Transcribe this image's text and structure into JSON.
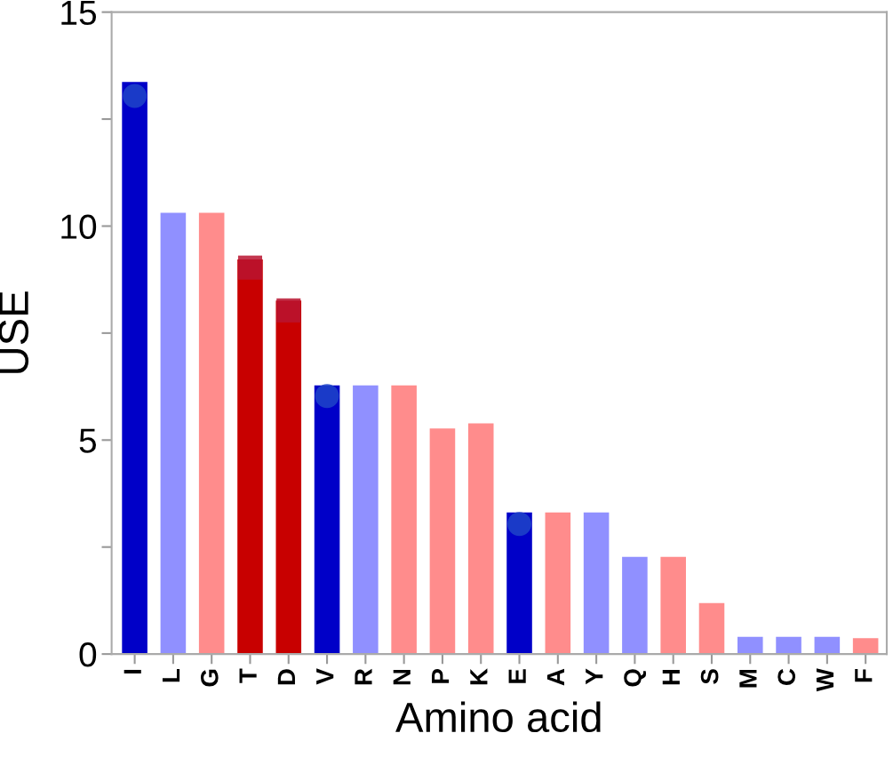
{
  "chart_data": {
    "type": "bar",
    "xlabel": "Amino acid",
    "ylabel": "USE",
    "categories": [
      "I",
      "L",
      "G",
      "T",
      "D",
      "V",
      "R",
      "N",
      "P",
      "K",
      "E",
      "A",
      "Y",
      "Q",
      "H",
      "S",
      "M",
      "C",
      "W",
      "F"
    ],
    "series": [
      {
        "values": [
          13.37,
          10.31,
          10.31,
          9.22,
          8.26,
          6.28,
          6.28,
          6.28,
          5.27,
          5.39,
          3.31,
          3.31,
          3.31,
          2.27,
          2.27,
          1.19,
          0.4,
          0.4,
          0.4,
          0.37
        ],
        "colors": [
          "#0000c8",
          "#9090ff",
          "#ff8c8c",
          "#c80000",
          "#c80000",
          "#0000c8",
          "#9090ff",
          "#ff8c8c",
          "#ff8c8c",
          "#ff8c8c",
          "#0000c8",
          "#ff8c8c",
          "#9090ff",
          "#9090ff",
          "#ff8c8c",
          "#ff8c8c",
          "#9090ff",
          "#9090ff",
          "#9090ff",
          "#ff8c8c"
        ]
      },
      {
        "type": "scatter",
        "marker": "circle",
        "color": "#1f44c8",
        "x": [
          "I",
          "V",
          "E"
        ],
        "values": [
          13.04,
          6.03,
          3.04
        ]
      },
      {
        "type": "scatter",
        "marker": "square",
        "color": "#b81430",
        "x": [
          "T",
          "D"
        ],
        "values": [
          9.03,
          8.03
        ]
      }
    ],
    "ylim": [
      0,
      15
    ],
    "yticks": [
      0,
      {
        "value": 2.5,
        "label": null
      },
      5,
      {
        "value": 7.5,
        "label": null
      },
      10,
      {
        "value": 12.5,
        "label": null
      },
      15
    ],
    "grid": false
  }
}
